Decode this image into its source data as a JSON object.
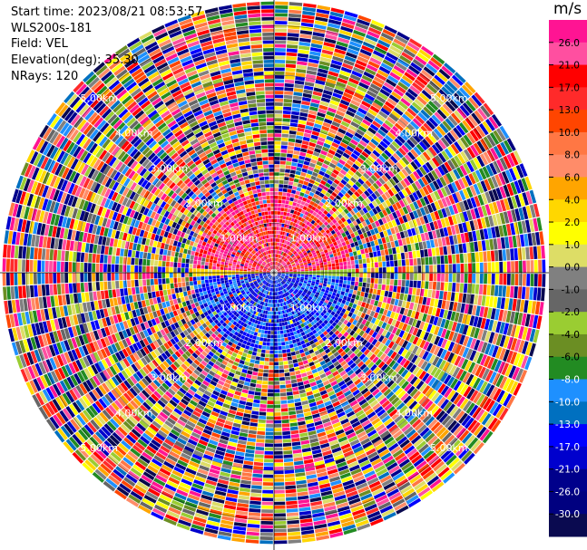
{
  "header": {
    "start_time": "Start time: 2023/08/21 08:53:57",
    "instrument": "WLS200s-181",
    "field": "Field: VEL",
    "elevation": "Elevation(deg): 35.30",
    "nrays": "NRays: 120"
  },
  "chart_data": {
    "type": "heatmap",
    "projection": "polar-ppi",
    "field": "VEL",
    "colorbar": {
      "unit": "m/s",
      "tick_labels": [
        "26.0",
        "21.0",
        "17.0",
        "13.0",
        "10.0",
        "8.0",
        "6.0",
        "4.0",
        "2.0",
        "1.0",
        "0.0",
        "-1.0",
        "-2.0",
        "-4.0",
        "-6.0",
        "-8.0",
        "-10.0",
        "-13.0",
        "-17.0",
        "-21.0",
        "-26.0",
        "-30.0"
      ],
      "colors": [
        "#ff1493",
        "#ff4fa0",
        "#ff0000",
        "#ff2a2a",
        "#ff4500",
        "#ff7744",
        "#ff8c69",
        "#ffa500",
        "#ffd700",
        "#ffff00",
        "#dddd66",
        "#808080",
        "#666666",
        "#9acd32",
        "#6b8e23",
        "#228b22",
        "#1e90ff",
        "#0070c0",
        "#0000ff",
        "#0000cd",
        "#00008b",
        "#000080",
        "#0a0a50"
      ]
    },
    "range_labels": [
      "1.00km",
      "2.00km",
      "3.00km",
      "4.00km",
      "5.00km"
    ],
    "nrays": 120,
    "max_range_km": 5.5
  }
}
